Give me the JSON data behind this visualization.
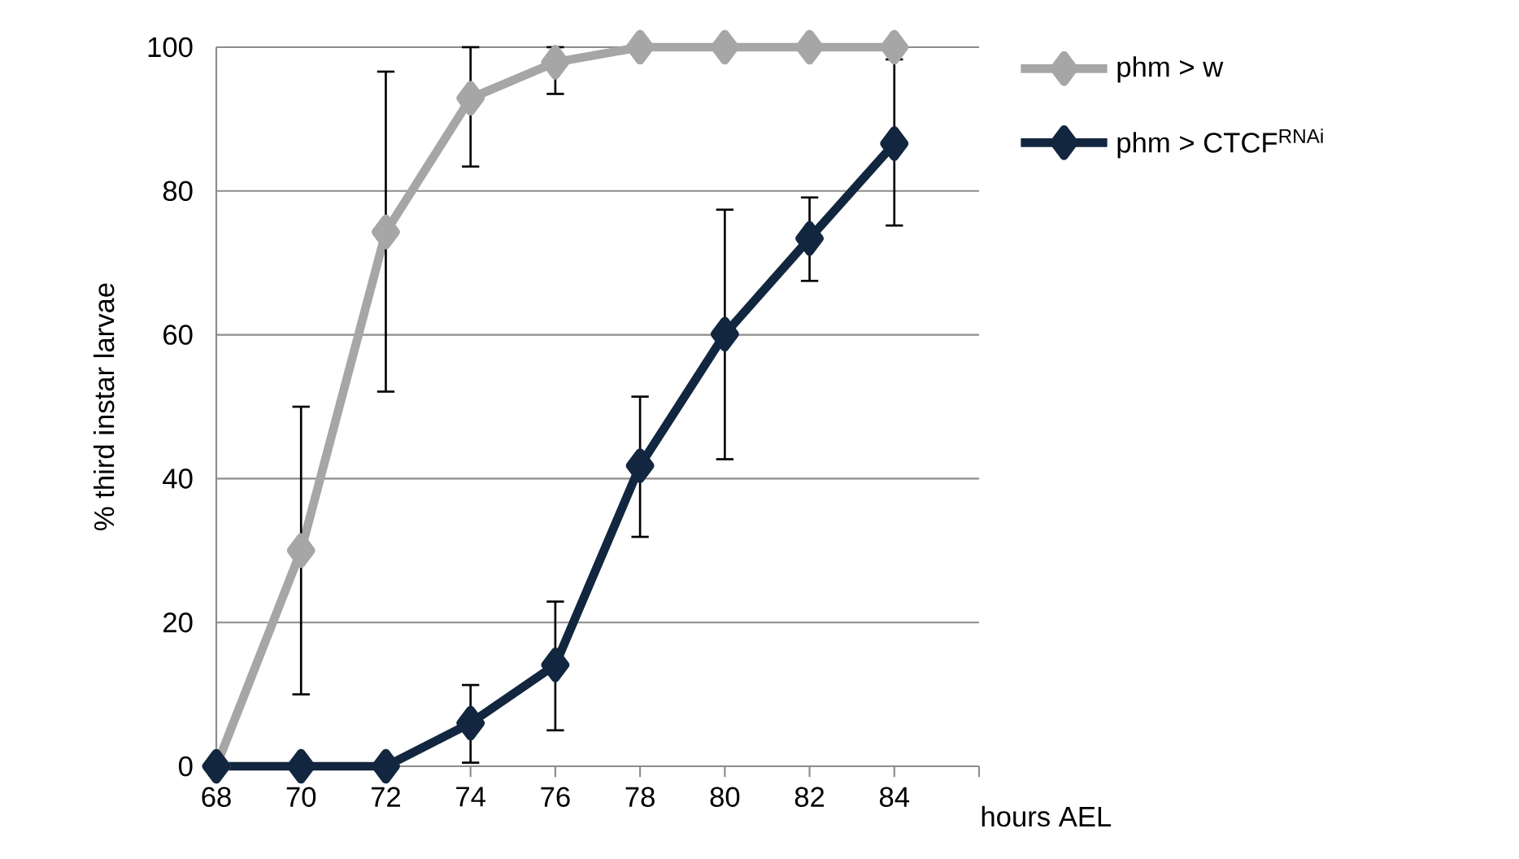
{
  "chart_data": {
    "type": "line",
    "xlabel": "hours AEL",
    "ylabel": "% third instar larvae",
    "x": [
      68,
      70,
      72,
      74,
      76,
      78,
      80,
      82,
      84
    ],
    "xlim": [
      68,
      86
    ],
    "xticks": [
      68,
      70,
      72,
      74,
      76,
      78,
      80,
      82,
      84,
      {
        "value": 86,
        "label": null
      }
    ],
    "ylim": [
      0,
      100
    ],
    "yticks": [
      0,
      20,
      40,
      60,
      80,
      100
    ],
    "grid": "y",
    "legend": "top right",
    "marker": "diamond",
    "line_style": "solid",
    "series": [
      {
        "name": "phm > w",
        "color": "#a6a6a6",
        "values": [
          0,
          30,
          74.3,
          92.9,
          97.9,
          100,
          100,
          100,
          100
        ],
        "errors": [
          null,
          [
            10,
            50
          ],
          [
            52.1,
            96.6
          ],
          [
            83.4,
            100
          ],
          [
            93.5,
            100
          ],
          null,
          null,
          null,
          null
        ]
      },
      {
        "name": "phm > CTCF$^{RNAi}$",
        "color": "#12263f",
        "values": [
          0,
          0,
          0,
          6,
          14.1,
          41.8,
          60.1,
          73.4,
          86.6
        ],
        "errors": [
          null,
          null,
          null,
          [
            0.5,
            11.3
          ],
          [
            5,
            22.9
          ],
          [
            31.9,
            51.4
          ],
          [
            42.7,
            77.4
          ],
          [
            67.5,
            79.1
          ],
          [
            75.2,
            98.3
          ]
        ]
      }
    ]
  }
}
